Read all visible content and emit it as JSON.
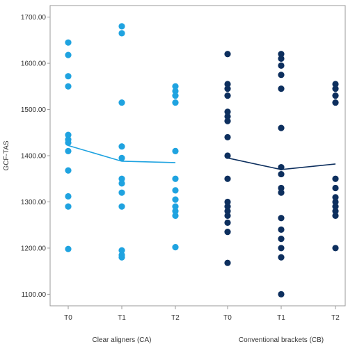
{
  "chart_data": {
    "type": "scatter",
    "ylabel": "GCF-TAS",
    "ylim": [
      1075,
      1725
    ],
    "yticks": [
      "1100.00",
      "1200.00",
      "1300.00",
      "1400.00",
      "1500.00",
      "1600.00",
      "1700.00"
    ],
    "yticks_values": [
      1100,
      1200,
      1300,
      1400,
      1500,
      1600,
      1700
    ],
    "grid": false,
    "groups": [
      {
        "label": "Clear aligners (CA)",
        "color": "#1fa3e0",
        "categories": [
          "T0",
          "T1",
          "T2"
        ],
        "mean_line": [
          1422,
          1388,
          1385
        ],
        "points": [
          [
            1645,
            1618,
            1572,
            1550,
            1445,
            1435,
            1428,
            1410,
            1368,
            1312,
            1290,
            1198
          ],
          [
            1680,
            1665,
            1515,
            1420,
            1395,
            1350,
            1340,
            1320,
            1290,
            1195,
            1185,
            1180
          ],
          [
            1550,
            1540,
            1530,
            1515,
            1410,
            1350,
            1325,
            1305,
            1290,
            1280,
            1270,
            1202
          ]
        ]
      },
      {
        "label": "Conventional brackets (CB)",
        "color": "#0d2f5e",
        "categories": [
          "T0",
          "T1",
          "T2"
        ],
        "mean_line": [
          1395,
          1370,
          1382
        ],
        "points": [
          [
            1620,
            1555,
            1545,
            1530,
            1495,
            1485,
            1475,
            1440,
            1400,
            1350,
            1300,
            1290,
            1280,
            1270,
            1255,
            1235,
            1168
          ],
          [
            1620,
            1610,
            1595,
            1575,
            1545,
            1460,
            1375,
            1360,
            1330,
            1320,
            1265,
            1240,
            1220,
            1200,
            1180,
            1100
          ],
          [
            1555,
            1545,
            1530,
            1515,
            1350,
            1330,
            1310,
            1300,
            1290,
            1280,
            1270,
            1200
          ]
        ]
      }
    ]
  }
}
